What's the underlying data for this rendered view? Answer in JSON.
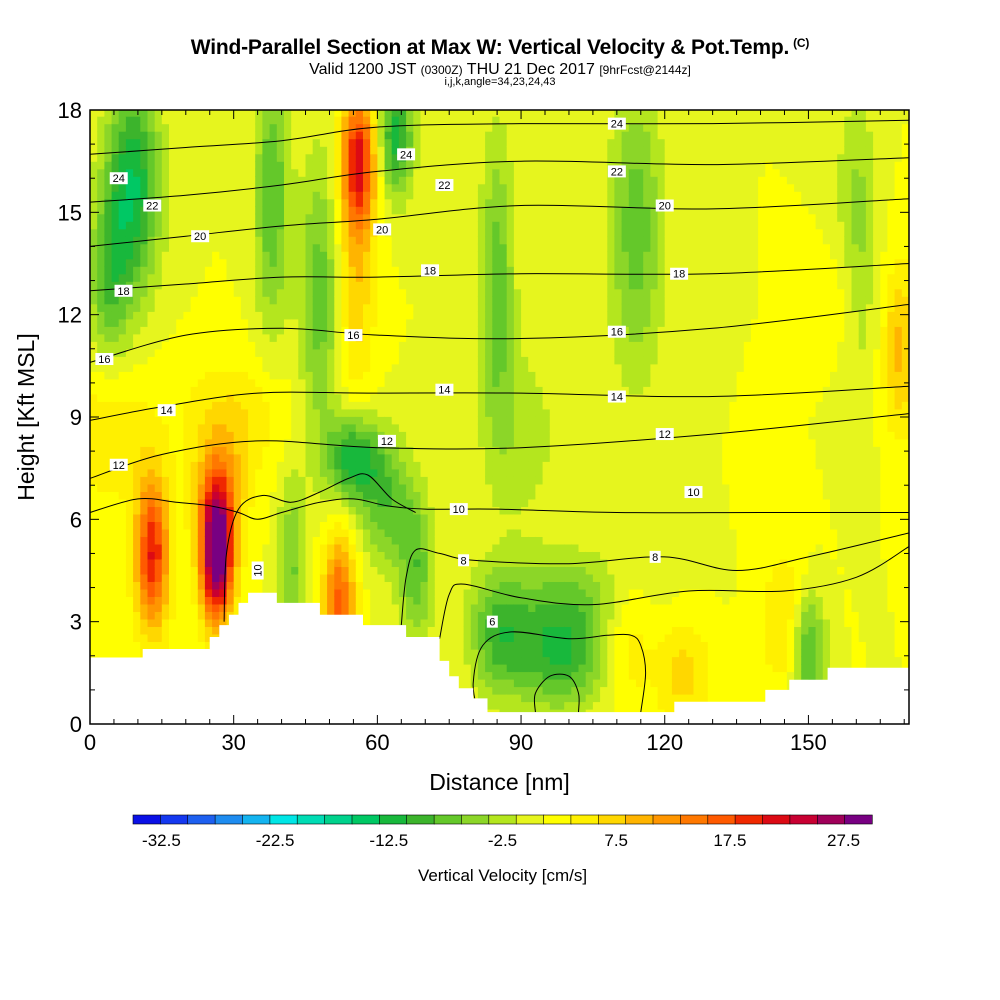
{
  "title": {
    "main": "Wind-Parallel Section at Max W: Vertical Velocity & Pot.Temp.",
    "copyright": "(C)",
    "valid_prefix": "Valid 1200 JST",
    "valid_utc": "(0300Z)",
    "valid_date": "THU 21 Dec 2017",
    "forecast": "[9hrFcst@2144z]",
    "indices": "i,j,k,angle=34,23,24,43"
  },
  "chart_data": {
    "type": "heatmap",
    "xlabel": "Distance [nm]",
    "ylabel": "Height [Kft MSL]",
    "xlim": [
      0,
      171
    ],
    "ylim": [
      0,
      18
    ],
    "x_ticks": [
      0,
      30,
      60,
      90,
      120,
      150
    ],
    "y_ticks": [
      0,
      3,
      6,
      9,
      12,
      15,
      18
    ],
    "colorbar": {
      "label": "Vertical Velocity [cm/s]",
      "tick_labels": [
        "-32.5",
        "-22.5",
        "-12.5",
        "-2.5",
        "7.5",
        "17.5",
        "27.5"
      ],
      "tick_values": [
        -32.5,
        -22.5,
        -12.5,
        -2.5,
        7.5,
        17.5,
        27.5
      ],
      "bin_edges": [
        -35,
        -32.5,
        -30,
        -27.5,
        -25,
        -22.5,
        -20,
        -17.5,
        -15,
        -12.5,
        -10,
        -7.5,
        -5,
        -2.5,
        0,
        2.5,
        5,
        7.5,
        10,
        12.5,
        15,
        17.5,
        20,
        22.5,
        25,
        27.5,
        30
      ],
      "colors": [
        "#0a10e6",
        "#1438f0",
        "#1e60f0",
        "#1e8cf0",
        "#14b4f0",
        "#00e6e6",
        "#00dcb4",
        "#00d28c",
        "#00c864",
        "#18b83c",
        "#3cb42c",
        "#64c82a",
        "#8cd628",
        "#b4e61e",
        "#e6f51e",
        "#ffff00",
        "#fff000",
        "#ffd700",
        "#ffb400",
        "#ff9600",
        "#ff7800",
        "#ff5a00",
        "#f02800",
        "#dc0a14",
        "#c80032",
        "#a0005a",
        "#780082"
      ]
    },
    "terrain_kft": [
      [
        0,
        1.95
      ],
      [
        11,
        1.95
      ],
      [
        11,
        2.2
      ],
      [
        25,
        2.2
      ],
      [
        25,
        2.55
      ],
      [
        27,
        2.55
      ],
      [
        27,
        2.9
      ],
      [
        29,
        2.9
      ],
      [
        29,
        3.2
      ],
      [
        31,
        3.2
      ],
      [
        31,
        3.55
      ],
      [
        33,
        3.55
      ],
      [
        33,
        3.85
      ],
      [
        39,
        3.85
      ],
      [
        39,
        3.55
      ],
      [
        48,
        3.55
      ],
      [
        48,
        3.2
      ],
      [
        57,
        3.2
      ],
      [
        57,
        2.9
      ],
      [
        66,
        2.9
      ],
      [
        66,
        2.55
      ],
      [
        73,
        2.55
      ],
      [
        73,
        1.85
      ],
      [
        75,
        1.85
      ],
      [
        75,
        1.4
      ],
      [
        77,
        1.4
      ],
      [
        77,
        1.05
      ],
      [
        80,
        1.05
      ],
      [
        80,
        0.75
      ],
      [
        83,
        0.75
      ],
      [
        83,
        0.35
      ],
      [
        122,
        0.35
      ],
      [
        122,
        0.65
      ],
      [
        141,
        0.65
      ],
      [
        141,
        1.0
      ],
      [
        146,
        1.0
      ],
      [
        146,
        1.3
      ],
      [
        154,
        1.3
      ],
      [
        154,
        1.65
      ],
      [
        171,
        1.65
      ]
    ],
    "wind_cells": [
      {
        "x": 13,
        "y": 5.0,
        "sx": 2.5,
        "sy": 1.6,
        "w": 20
      },
      {
        "x": 26.5,
        "y": 5.0,
        "sx": 2.4,
        "sy": 1.4,
        "w": 32
      },
      {
        "x": 27,
        "y": 6.8,
        "sx": 4,
        "sy": 1.2,
        "w": 8
      },
      {
        "x": 52,
        "y": 3.6,
        "sx": 2.4,
        "sy": 1.4,
        "w": 16
      },
      {
        "x": 56,
        "y": 16.5,
        "sx": 2.5,
        "sy": 1.4,
        "w": 20
      },
      {
        "x": 55.5,
        "y": 13.0,
        "sx": 2.8,
        "sy": 2.5,
        "w": 7
      },
      {
        "x": 4,
        "y": 8.5,
        "sx": 6,
        "sy": 1.5,
        "w": 5
      },
      {
        "x": 30,
        "y": 9.0,
        "sx": 8,
        "sy": 1.2,
        "w": 5
      },
      {
        "x": 112,
        "y": 2.5,
        "sx": 4,
        "sy": 1.5,
        "w": 6
      },
      {
        "x": 124,
        "y": 1.5,
        "sx": 4,
        "sy": 1.2,
        "w": 6
      },
      {
        "x": 146,
        "y": 3.0,
        "sx": 4,
        "sy": 1.5,
        "w": 6
      },
      {
        "x": 169,
        "y": 11.0,
        "sx": 2.5,
        "sy": 1.8,
        "w": 8
      },
      {
        "x": 158,
        "y": 12.5,
        "sx": 3,
        "sy": 1.5,
        "w": 4
      },
      {
        "x": 9,
        "y": 15.8,
        "sx": 4,
        "sy": 2.2,
        "w": -15
      },
      {
        "x": 4,
        "y": 13.0,
        "sx": 3,
        "sy": 1.8,
        "w": -9
      },
      {
        "x": 38,
        "y": 15.5,
        "sx": 2.5,
        "sy": 2.8,
        "w": -10
      },
      {
        "x": 48,
        "y": 12.5,
        "sx": 3,
        "sy": 3,
        "w": -9
      },
      {
        "x": 55,
        "y": 7.8,
        "sx": 4,
        "sy": 0.9,
        "w": -14
      },
      {
        "x": 64,
        "y": 17.2,
        "sx": 2.5,
        "sy": 1.2,
        "w": -14
      },
      {
        "x": 42,
        "y": 4.5,
        "sx": 2,
        "sy": 2,
        "w": -8
      },
      {
        "x": 62,
        "y": 6.5,
        "sx": 4,
        "sy": 1.3,
        "w": -9
      },
      {
        "x": 68,
        "y": 4.5,
        "sx": 2.5,
        "sy": 1.5,
        "w": -9
      },
      {
        "x": 85,
        "y": 2.6,
        "sx": 4,
        "sy": 1.2,
        "w": -8
      },
      {
        "x": 98,
        "y": 2.0,
        "sx": 8,
        "sy": 1.1,
        "w": -12
      },
      {
        "x": 100,
        "y": 3.8,
        "sx": 12,
        "sy": 1.0,
        "w": -6
      },
      {
        "x": 85,
        "y": 13.0,
        "sx": 2.5,
        "sy": 3,
        "w": -9
      },
      {
        "x": 114,
        "y": 14.5,
        "sx": 4,
        "sy": 3,
        "w": -9
      },
      {
        "x": 150,
        "y": 2.2,
        "sx": 2.5,
        "sy": 1.3,
        "w": -13
      },
      {
        "x": 160,
        "y": 14.0,
        "sx": 3,
        "sy": 3,
        "w": -7
      },
      {
        "x": 90,
        "y": 8.5,
        "sx": 6,
        "sy": 2,
        "w": -4
      }
    ],
    "contours": [
      {
        "label": "24",
        "pts": [
          [
            0,
            16.7
          ],
          [
            20,
            16.9
          ],
          [
            40,
            17.1
          ],
          [
            60,
            17.5
          ],
          [
            90,
            17.6
          ],
          [
            130,
            17.6
          ],
          [
            171,
            17.7
          ]
        ],
        "labels": [
          [
            6,
            16.0
          ],
          [
            66,
            16.7
          ],
          [
            110,
            17.6
          ]
        ]
      },
      {
        "label": "22",
        "pts": [
          [
            0,
            15.3
          ],
          [
            20,
            15.5
          ],
          [
            40,
            15.8
          ],
          [
            60,
            16.2
          ],
          [
            90,
            16.5
          ],
          [
            130,
            16.4
          ],
          [
            171,
            16.6
          ]
        ],
        "labels": [
          [
            13,
            15.2
          ],
          [
            74,
            15.8
          ],
          [
            110,
            16.2
          ]
        ]
      },
      {
        "label": "20",
        "pts": [
          [
            0,
            14.0
          ],
          [
            20,
            14.3
          ],
          [
            40,
            14.6
          ],
          [
            60,
            14.8
          ],
          [
            90,
            15.2
          ],
          [
            130,
            15.1
          ],
          [
            171,
            15.4
          ]
        ],
        "labels": [
          [
            23,
            14.3
          ],
          [
            61,
            14.5
          ],
          [
            120,
            15.2
          ]
        ]
      },
      {
        "label": "18",
        "pts": [
          [
            0,
            12.7
          ],
          [
            20,
            12.9
          ],
          [
            40,
            13.1
          ],
          [
            60,
            13.1
          ],
          [
            90,
            13.2
          ],
          [
            130,
            13.2
          ],
          [
            171,
            13.5
          ]
        ],
        "labels": [
          [
            7,
            12.7
          ],
          [
            71,
            13.3
          ],
          [
            123,
            13.2
          ]
        ]
      },
      {
        "label": "16",
        "pts": [
          [
            0,
            10.6
          ],
          [
            20,
            11.4
          ],
          [
            40,
            11.6
          ],
          [
            60,
            11.4
          ],
          [
            90,
            11.3
          ],
          [
            130,
            11.6
          ],
          [
            171,
            12.3
          ]
        ],
        "labels": [
          [
            3,
            10.7
          ],
          [
            55,
            11.4
          ],
          [
            110,
            11.5
          ]
        ]
      },
      {
        "label": "14",
        "pts": [
          [
            0,
            8.9
          ],
          [
            15,
            9.3
          ],
          [
            35,
            9.7
          ],
          [
            58,
            9.7
          ],
          [
            90,
            9.7
          ],
          [
            130,
            9.6
          ],
          [
            171,
            9.9
          ]
        ],
        "labels": [
          [
            16,
            9.2
          ],
          [
            74,
            9.8
          ],
          [
            110,
            9.6
          ]
        ]
      },
      {
        "label": "12",
        "pts": [
          [
            0,
            7.2
          ],
          [
            15,
            7.9
          ],
          [
            35,
            8.3
          ],
          [
            60,
            8.1
          ],
          [
            90,
            8.1
          ],
          [
            130,
            8.5
          ],
          [
            171,
            9.1
          ]
        ],
        "labels": [
          [
            6,
            7.6
          ],
          [
            62,
            8.3
          ],
          [
            120,
            8.5
          ]
        ]
      },
      {
        "label": "10",
        "pts": [
          [
            0,
            6.2
          ],
          [
            10,
            6.6
          ],
          [
            18,
            6.5
          ],
          [
            25,
            6.4
          ],
          [
            31,
            6.2
          ],
          [
            35,
            6.0
          ],
          [
            40,
            6.2
          ],
          [
            48,
            6.5
          ],
          [
            55,
            6.6
          ],
          [
            62,
            6.4
          ],
          [
            70,
            6.3
          ],
          [
            85,
            6.3
          ],
          [
            110,
            6.2
          ],
          [
            140,
            6.2
          ],
          [
            171,
            6.2
          ]
        ],
        "labels": [
          [
            77,
            6.3
          ],
          [
            126,
            6.8
          ]
        ]
      },
      {
        "label": "8",
        "pts": [
          [
            65,
            2.9
          ],
          [
            66,
            4.3
          ],
          [
            68,
            5.1
          ],
          [
            73,
            5.0
          ],
          [
            80,
            4.8
          ],
          [
            100,
            4.7
          ],
          [
            120,
            4.9
          ],
          [
            135,
            4.5
          ],
          [
            150,
            4.9
          ],
          [
            171,
            5.6
          ]
        ],
        "labels": [
          [
            78,
            4.8
          ],
          [
            118,
            4.9
          ]
        ]
      },
      {
        "label": "6",
        "pts": [
          [
            73,
            2.5
          ],
          [
            75,
            3.8
          ],
          [
            78,
            4.1
          ],
          [
            90,
            3.7
          ],
          [
            105,
            3.5
          ],
          [
            125,
            3.9
          ],
          [
            145,
            3.9
          ],
          [
            160,
            4.3
          ],
          [
            171,
            5.2
          ]
        ],
        "labels": [
          [
            84,
            3.0
          ]
        ]
      },
      {
        "label": "",
        "pts": [
          [
            28,
            3.0
          ],
          [
            28.5,
            5.0
          ],
          [
            31,
            6.3
          ],
          [
            36,
            6.7
          ],
          [
            42,
            6.5
          ],
          [
            48,
            6.8
          ],
          [
            54,
            7.2
          ],
          [
            58,
            7.3
          ],
          [
            63,
            6.6
          ],
          [
            68,
            6.2
          ]
        ],
        "labels": [
          [
            35,
            4.5
          ]
        ]
      },
      {
        "label": "",
        "pts": [
          [
            81,
            0.35
          ],
          [
            80,
            1.2
          ],
          [
            82,
            2.3
          ],
          [
            88,
            2.7
          ],
          [
            100,
            2.5
          ],
          [
            108,
            2.6
          ],
          [
            113,
            2.6
          ],
          [
            115,
            2.3
          ],
          [
            116,
            1.5
          ],
          [
            115,
            0.35
          ]
        ],
        "labels": []
      },
      {
        "label": "",
        "pts": [
          [
            93,
            0.35
          ],
          [
            93,
            0.9
          ],
          [
            96,
            1.4
          ],
          [
            100,
            1.4
          ],
          [
            102,
            0.9
          ],
          [
            102,
            0.35
          ]
        ],
        "labels": []
      }
    ]
  }
}
